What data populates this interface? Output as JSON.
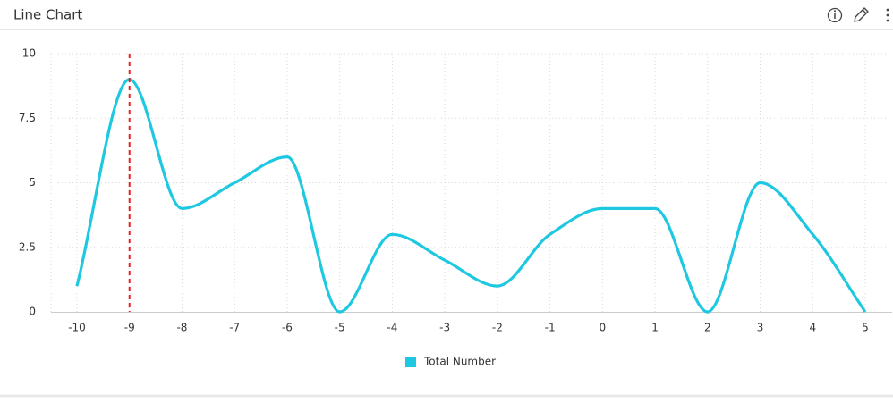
{
  "chart_data": {
    "type": "line",
    "title": "Line Chart",
    "x": [
      -10,
      -9,
      -8,
      -7,
      -6,
      -5,
      -4,
      -3,
      -2,
      -1,
      0,
      1,
      2,
      3,
      4,
      5
    ],
    "series": [
      {
        "name": "Total Number",
        "color": "#1ec8e1",
        "values": [
          1,
          9,
          4,
          5,
          6,
          0,
          3,
          2,
          1,
          3,
          4,
          4,
          0,
          5,
          3,
          0
        ]
      }
    ],
    "xlim": [
      -10,
      5
    ],
    "xticks": [
      -10,
      -9,
      -8,
      -7,
      -6,
      -5,
      -4,
      -3,
      -2,
      -1,
      0,
      1,
      2,
      3,
      4,
      5
    ],
    "ylim": [
      0,
      10
    ],
    "yticks": [
      0,
      2.5,
      5,
      7.5,
      10
    ],
    "grid": true,
    "smooth": true,
    "reference_line": {
      "x": -9,
      "color": "#e8201e"
    },
    "legend": "bottom"
  }
}
